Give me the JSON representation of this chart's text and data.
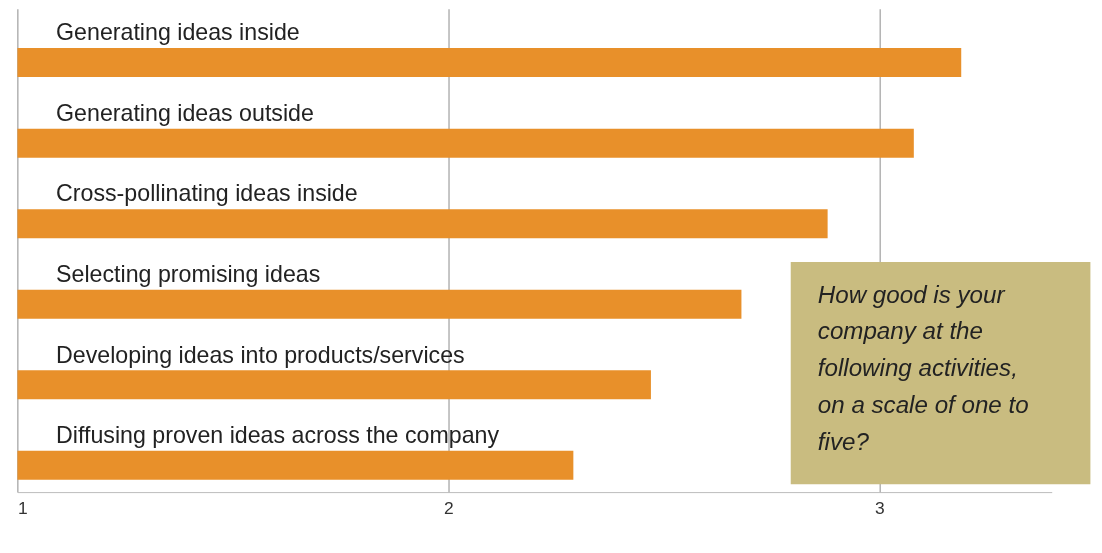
{
  "chart_data": {
    "type": "bar",
    "orientation": "horizontal",
    "categories": [
      "Generating ideas inside",
      "Generating ideas outside",
      "Cross-pollinating ideas inside",
      "Selecting promising ideas",
      "Developing ideas into products/services",
      "Diffusing proven ideas across the company"
    ],
    "values": [
      3.19,
      3.08,
      2.88,
      2.68,
      2.47,
      2.29
    ],
    "color": "#e8902a",
    "xlim": [
      1,
      3.4
    ],
    "xticks": [
      1,
      2,
      3
    ],
    "grid": "x",
    "tick_labels": "x",
    "annotations": [
      "How good is your company at the following activities, on a scale of one to five?"
    ]
  }
}
